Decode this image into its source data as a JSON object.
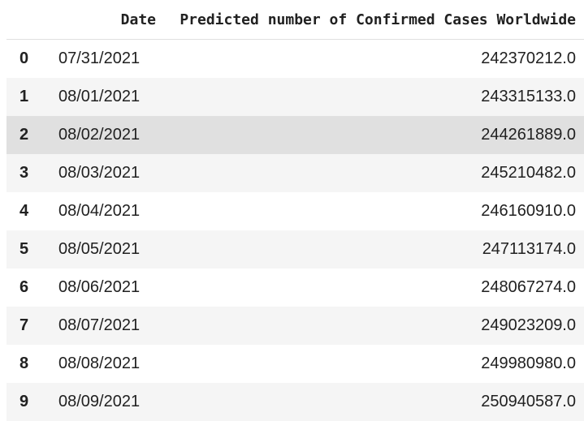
{
  "table": {
    "columns": {
      "index": "",
      "date": "Date",
      "cases": "Predicted number of Confirmed Cases Worldwide"
    },
    "rows": [
      {
        "index": "0",
        "date": "07/31/2021",
        "cases": "242370212.0"
      },
      {
        "index": "1",
        "date": "08/01/2021",
        "cases": "243315133.0"
      },
      {
        "index": "2",
        "date": "08/02/2021",
        "cases": "244261889.0"
      },
      {
        "index": "3",
        "date": "08/03/2021",
        "cases": "245210482.0"
      },
      {
        "index": "4",
        "date": "08/04/2021",
        "cases": "246160910.0"
      },
      {
        "index": "5",
        "date": "08/05/2021",
        "cases": "247113174.0"
      },
      {
        "index": "6",
        "date": "08/06/2021",
        "cases": "248067274.0"
      },
      {
        "index": "7",
        "date": "08/07/2021",
        "cases": "249023209.0"
      },
      {
        "index": "8",
        "date": "08/08/2021",
        "cases": "249980980.0"
      },
      {
        "index": "9",
        "date": "08/09/2021",
        "cases": "250940587.0"
      }
    ]
  },
  "colors": {
    "header_border": "#e0e0e0",
    "striped_row": "#f5f5f5",
    "hover_row": "#e0e0e0",
    "text": "#212121"
  }
}
